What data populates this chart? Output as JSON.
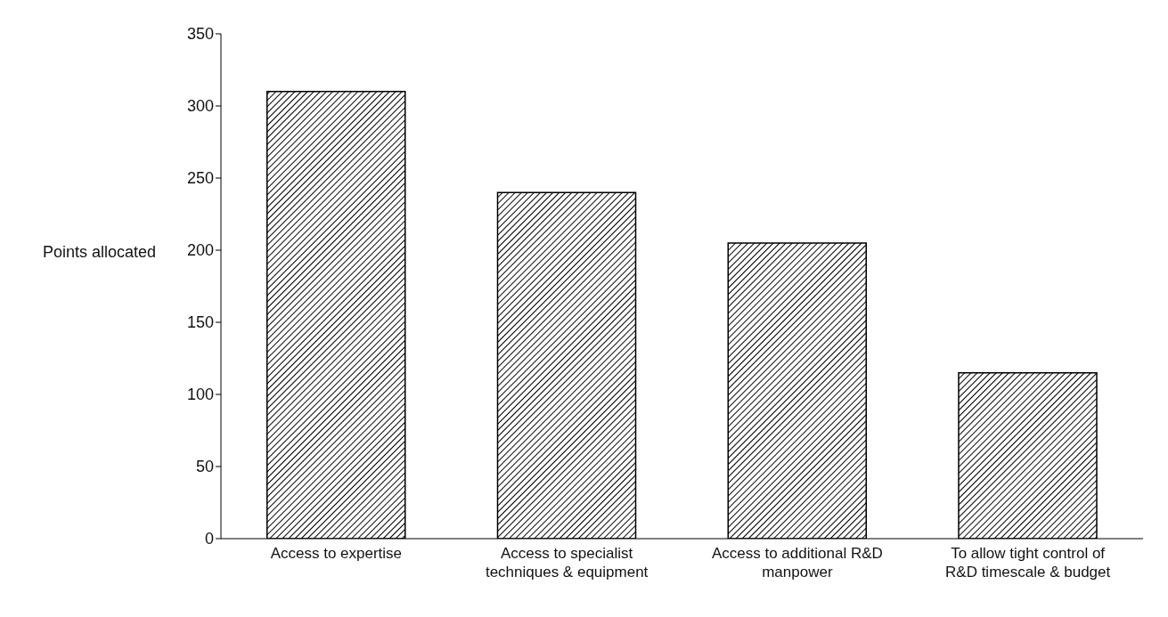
{
  "chart_data": {
    "type": "bar",
    "ylabel": "Points allocated",
    "categories": [
      "Access to expertise",
      "Access to specialist techniques & equipment",
      "Access to additional R&D manpower",
      "To allow tight control of R&D timescale & budget"
    ],
    "values": [
      310,
      240,
      205,
      115
    ],
    "color": "#000000",
    "ylim": [
      0,
      350
    ],
    "yticks": [
      0,
      50,
      100,
      150,
      200,
      250,
      300,
      350
    ],
    "grid": false
  }
}
